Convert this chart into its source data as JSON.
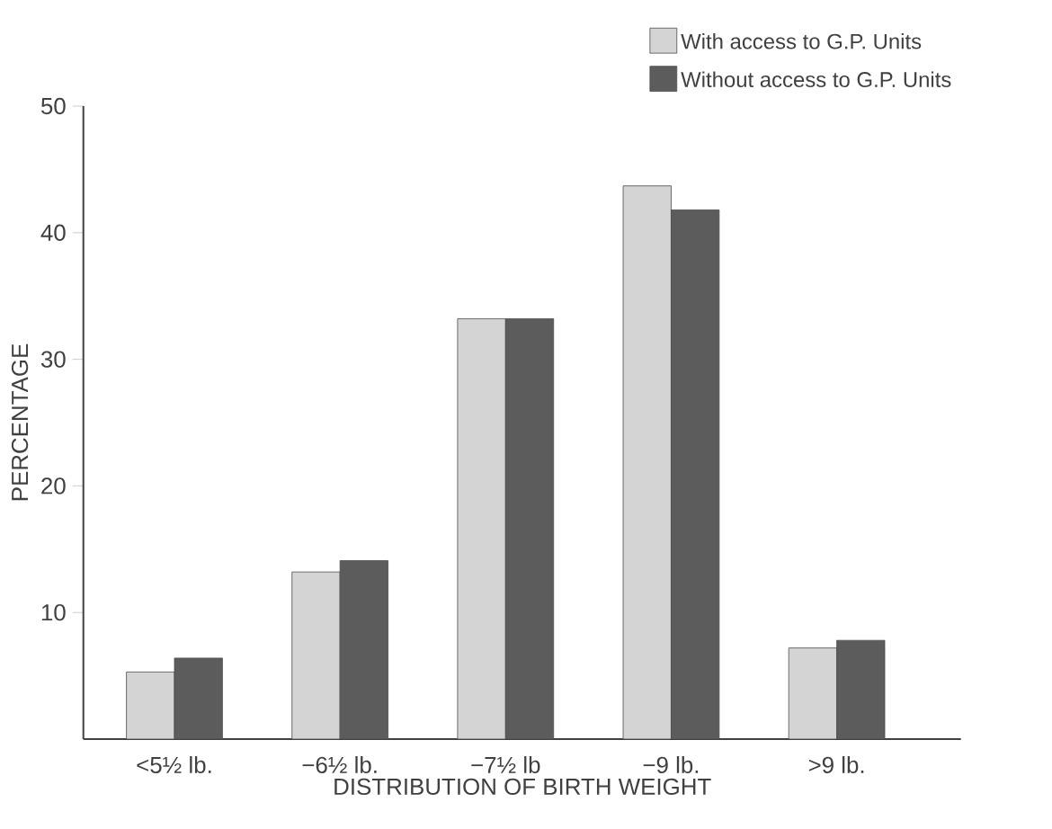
{
  "chart_data": {
    "type": "bar",
    "xlabel": "DISTRIBUTION OF BIRTH WEIGHT",
    "ylabel": "PERCENTAGE",
    "categories": [
      "<5½ lb.",
      "−6½ lb.",
      "−7½ lb",
      "−9 lb.",
      ">9 lb."
    ],
    "series": [
      {
        "name": "With access to G.P. Units",
        "color": "#d4d4d4",
        "values": [
          5.3,
          13.2,
          33.2,
          43.7,
          7.2
        ]
      },
      {
        "name": "Without access to G.P. Units",
        "color": "#5c5c5c",
        "values": [
          6.4,
          14.1,
          33.2,
          41.8,
          7.8
        ]
      }
    ],
    "ylim": [
      0,
      50
    ],
    "yticks": [
      10,
      20,
      30,
      40,
      50
    ],
    "grid": false,
    "legend": "top right"
  }
}
